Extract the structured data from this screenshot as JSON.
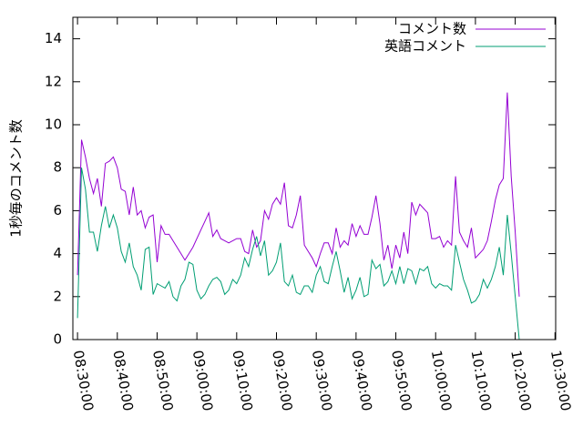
{
  "chart_data": {
    "type": "line",
    "ylabel": "1秒毎のコメント数",
    "x": [
      "08:30:00",
      "08:31:00",
      "08:32:00",
      "08:33:00",
      "08:34:00",
      "08:35:00",
      "08:36:00",
      "08:37:00",
      "08:38:00",
      "08:39:00",
      "08:40:00",
      "08:41:00",
      "08:42:00",
      "08:43:00",
      "08:44:00",
      "08:45:00",
      "08:46:00",
      "08:47:00",
      "08:48:00",
      "08:49:00",
      "08:50:00",
      "08:51:00",
      "08:52:00",
      "08:53:00",
      "08:54:00",
      "08:55:00",
      "08:56:00",
      "08:57:00",
      "08:58:00",
      "08:59:00",
      "09:00:00",
      "09:01:00",
      "09:02:00",
      "09:03:00",
      "09:04:00",
      "09:05:00",
      "09:06:00",
      "09:07:00",
      "09:08:00",
      "09:09:00",
      "09:10:00",
      "09:11:00",
      "09:12:00",
      "09:13:00",
      "09:14:00",
      "09:15:00",
      "09:16:00",
      "09:17:00",
      "09:18:00",
      "09:19:00",
      "09:20:00",
      "09:21:00",
      "09:22:00",
      "09:23:00",
      "09:24:00",
      "09:25:00",
      "09:26:00",
      "09:27:00",
      "09:28:00",
      "09:29:00",
      "09:30:00",
      "09:31:00",
      "09:32:00",
      "09:33:00",
      "09:34:00",
      "09:35:00",
      "09:36:00",
      "09:37:00",
      "09:38:00",
      "09:39:00",
      "09:40:00",
      "09:41:00",
      "09:42:00",
      "09:43:00",
      "09:44:00",
      "09:45:00",
      "09:46:00",
      "09:47:00",
      "09:48:00",
      "09:49:00",
      "09:50:00",
      "09:51:00",
      "09:52:00",
      "09:53:00",
      "09:54:00",
      "09:55:00",
      "09:56:00",
      "09:57:00",
      "09:58:00",
      "09:59:00",
      "10:00:00",
      "10:01:00",
      "10:02:00",
      "10:03:00",
      "10:04:00",
      "10:05:00",
      "10:06:00",
      "10:07:00",
      "10:08:00",
      "10:09:00",
      "10:10:00",
      "10:11:00",
      "10:12:00",
      "10:13:00",
      "10:14:00",
      "10:15:00",
      "10:16:00",
      "10:17:00",
      "10:18:00",
      "10:19:00",
      "10:20:00",
      "10:21:00"
    ],
    "series": [
      {
        "name": "コメント数",
        "color": "#9400d3",
        "values": [
          3.0,
          9.3,
          8.5,
          7.5,
          6.8,
          7.5,
          6.2,
          8.2,
          8.3,
          8.5,
          8.0,
          7.0,
          6.9,
          5.8,
          7.1,
          5.8,
          6.0,
          5.2,
          5.7,
          5.8,
          3.6,
          5.3,
          4.9,
          4.9,
          4.6,
          4.3,
          4.0,
          3.7,
          4.0,
          4.3,
          4.7,
          5.1,
          5.5,
          5.9,
          4.8,
          5.1,
          4.7,
          4.6,
          4.5,
          4.6,
          4.7,
          4.7,
          4.1,
          4.0,
          5.1,
          4.3,
          4.6,
          6.0,
          5.6,
          6.3,
          6.6,
          6.3,
          7.3,
          5.3,
          5.2,
          5.8,
          6.7,
          4.4,
          4.1,
          3.8,
          3.4,
          4.0,
          4.5,
          4.5,
          4.0,
          5.2,
          4.3,
          4.6,
          4.4,
          5.4,
          4.8,
          5.3,
          4.9,
          4.9,
          5.7,
          6.7,
          5.4,
          3.7,
          4.4,
          3.3,
          4.4,
          3.8,
          5.0,
          4.0,
          6.4,
          5.8,
          6.3,
          6.1,
          5.9,
          4.7,
          4.7,
          4.8,
          4.3,
          4.6,
          4.4,
          7.6,
          5.0,
          4.6,
          4.3,
          5.2,
          3.8,
          4.0,
          4.2,
          4.6,
          5.5,
          6.5,
          7.2,
          7.5,
          11.5,
          7.6,
          5.0,
          2.0
        ]
      },
      {
        "name": "英語コメント",
        "color": "#009e73",
        "values": [
          1.0,
          8.0,
          7.0,
          5.0,
          5.0,
          4.1,
          5.3,
          6.2,
          5.2,
          5.8,
          5.2,
          4.1,
          3.6,
          4.5,
          3.4,
          3.0,
          2.3,
          4.2,
          4.3,
          2.1,
          2.6,
          2.5,
          2.4,
          2.7,
          2.0,
          1.8,
          2.5,
          2.8,
          3.6,
          3.5,
          2.3,
          1.9,
          2.1,
          2.5,
          2.8,
          2.9,
          2.7,
          2.1,
          2.3,
          2.8,
          2.6,
          3.0,
          3.8,
          3.4,
          4.2,
          4.8,
          3.9,
          4.6,
          3.0,
          3.2,
          3.6,
          4.5,
          2.7,
          2.5,
          3.0,
          2.2,
          2.1,
          2.5,
          2.5,
          2.2,
          3.0,
          3.4,
          2.7,
          2.6,
          3.4,
          4.1,
          3.2,
          2.2,
          2.9,
          1.9,
          2.3,
          2.9,
          2.0,
          2.1,
          3.7,
          3.3,
          3.5,
          2.5,
          2.7,
          3.2,
          2.6,
          3.4,
          2.6,
          3.3,
          3.2,
          2.6,
          3.3,
          3.2,
          3.4,
          2.6,
          2.4,
          2.6,
          2.5,
          2.5,
          2.3,
          4.4,
          3.6,
          2.8,
          2.3,
          1.7,
          1.8,
          2.1,
          2.8,
          2.4,
          2.8,
          3.4,
          4.3,
          3.0,
          5.8,
          4.0,
          2.0,
          0.0
        ]
      }
    ],
    "xlim": [
      "08:28:50",
      "10:30:10"
    ],
    "xticks": [
      "08:30:00",
      "08:40:00",
      "08:50:00",
      "09:00:00",
      "09:10:00",
      "09:20:00",
      "09:30:00",
      "09:40:00",
      "09:50:00",
      "10:00:00",
      "10:10:00",
      "10:20:00",
      "10:30:00"
    ],
    "ylim": [
      0,
      15
    ],
    "yticks": [
      0,
      2,
      4,
      6,
      8,
      10,
      12,
      14
    ],
    "legend": "top-right",
    "grid": false
  }
}
